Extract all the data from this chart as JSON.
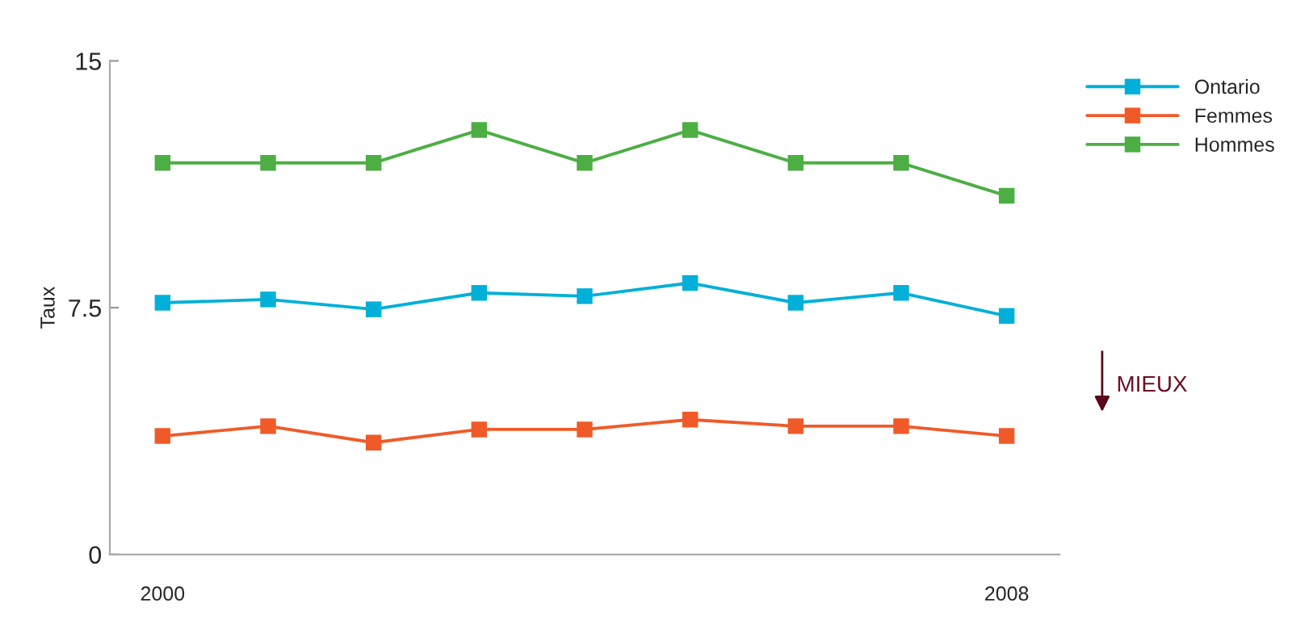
{
  "chart_data": {
    "type": "line",
    "ylabel": "Taux",
    "x": [
      2000,
      2001,
      2002,
      2003,
      2004,
      2005,
      2006,
      2007,
      2008
    ],
    "series": [
      {
        "name": "Ontario",
        "color": "#00b0d8",
        "values": [
          7.65,
          7.75,
          7.45,
          7.95,
          7.85,
          8.25,
          7.65,
          7.95,
          7.25
        ]
      },
      {
        "name": "Femmes",
        "color": "#f05a28",
        "values": [
          3.6,
          3.9,
          3.4,
          3.8,
          3.8,
          4.1,
          3.9,
          3.9,
          3.6
        ]
      },
      {
        "name": "Hommes",
        "color": "#4cae43",
        "values": [
          11.9,
          11.9,
          11.9,
          12.9,
          11.9,
          12.9,
          11.9,
          11.9,
          10.9
        ]
      }
    ],
    "xlim": [
      1999.5,
      2008.5
    ],
    "xticks": [
      2000,
      2008
    ],
    "ylim": [
      0,
      15
    ],
    "yticks": [
      0,
      7.5,
      15
    ],
    "annotations": [
      "MIEUX"
    ],
    "grid": false,
    "legend": "top right",
    "marker": "square",
    "line_style": "solid"
  }
}
